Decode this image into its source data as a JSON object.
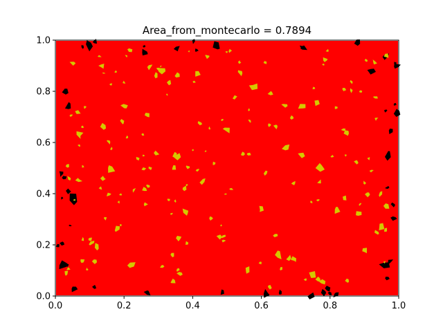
{
  "chart_data": {
    "type": "scatter",
    "title": "Area_from_montecarlo = 0.7894",
    "xlabel": "",
    "ylabel": "",
    "xlim": [
      0,
      1
    ],
    "ylim": [
      0,
      1
    ],
    "x_ticks": [
      "0.0",
      "0.2",
      "0.4",
      "0.6",
      "0.8",
      "1.0"
    ],
    "y_ticks": [
      "0.0",
      "0.2",
      "0.4",
      "0.6",
      "0.8",
      "1.0"
    ],
    "grid": false,
    "legend": "none",
    "area_estimate": 0.7894,
    "series": [
      {
        "color": "#ff0000",
        "region": "inside",
        "sample_points": [
          [
            0.5,
            0.5
          ],
          [
            0.3,
            0.7
          ],
          [
            0.7,
            0.3
          ],
          [
            0.2,
            0.2
          ],
          [
            0.8,
            0.8
          ],
          [
            0.5,
            0.9
          ],
          [
            0.1,
            0.5
          ],
          [
            0.9,
            0.5
          ]
        ]
      },
      {
        "color": "#000000",
        "region": "outside",
        "sample_points": [
          [
            0.02,
            0.12
          ],
          [
            0.04,
            0.74
          ],
          [
            0.1,
            0.98
          ],
          [
            0.26,
            0.95
          ],
          [
            0.47,
            0.98
          ],
          [
            0.72,
            0.97
          ],
          [
            0.92,
            0.88
          ],
          [
            0.97,
            0.55
          ],
          [
            0.96,
            0.12
          ],
          [
            0.05,
            0.38
          ]
        ]
      },
      {
        "color": "#d4c800",
        "region": "highlight",
        "sample_points": [
          [
            0.31,
            0.88
          ],
          [
            0.2,
            0.74
          ],
          [
            0.58,
            0.82
          ],
          [
            0.85,
            0.64
          ],
          [
            0.35,
            0.55
          ],
          [
            0.67,
            0.58
          ],
          [
            0.27,
            0.43
          ],
          [
            0.43,
            0.45
          ],
          [
            0.6,
            0.34
          ],
          [
            0.82,
            0.34
          ],
          [
            0.88,
            0.32
          ],
          [
            0.38,
            0.33
          ],
          [
            0.18,
            0.26
          ],
          [
            0.12,
            0.19
          ],
          [
            0.22,
            0.12
          ],
          [
            0.48,
            0.23
          ],
          [
            0.65,
            0.16
          ],
          [
            0.75,
            0.08
          ],
          [
            0.9,
            0.18
          ],
          [
            0.56,
            0.1
          ],
          [
            0.07,
            0.63
          ],
          [
            0.16,
            0.5
          ],
          [
            0.77,
            0.5
          ],
          [
            0.95,
            0.27
          ],
          [
            0.5,
            0.65
          ],
          [
            0.72,
            0.74
          ]
        ]
      }
    ]
  }
}
